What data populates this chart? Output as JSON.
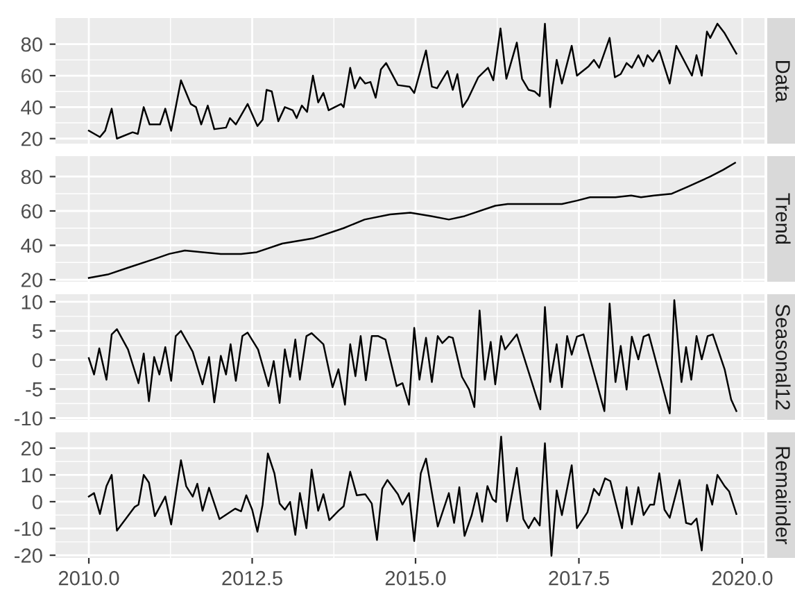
{
  "chart_data": [
    {
      "type": "line",
      "ylabel": "Data",
      "color": "#000000",
      "grid": true,
      "tick_labels": "y",
      "xlim": [
        2009.49,
        2020.34
      ],
      "ylim": [
        16.8,
        96.6
      ],
      "yticks": [
        20,
        40,
        60,
        80
      ],
      "x": [
        2010.0,
        2010.17,
        2010.25,
        2010.35,
        2010.43,
        2010.67,
        2010.75,
        2010.84,
        2010.93,
        2011.09,
        2011.17,
        2011.26,
        2011.41,
        2011.56,
        2011.64,
        2011.72,
        2011.82,
        2011.92,
        2012.1,
        2012.16,
        2012.25,
        2012.43,
        2012.58,
        2012.66,
        2012.72,
        2012.8,
        2012.9,
        2013.0,
        2013.12,
        2013.18,
        2013.26,
        2013.34,
        2013.43,
        2013.51,
        2013.59,
        2013.67,
        2013.86,
        2013.9,
        2014.0,
        2014.07,
        2014.15,
        2014.23,
        2014.31,
        2014.39,
        2014.47,
        2014.55,
        2014.73,
        2014.91,
        2014.98,
        2015.16,
        2015.25,
        2015.33,
        2015.49,
        2015.57,
        2015.64,
        2015.72,
        2015.8,
        2015.96,
        2016.11,
        2016.19,
        2016.3,
        2016.39,
        2016.55,
        2016.63,
        2016.73,
        2016.82,
        2016.9,
        2016.98,
        2017.06,
        2017.1,
        2017.16,
        2017.24,
        2017.39,
        2017.47,
        2017.65,
        2017.73,
        2017.81,
        2017.97,
        2018.05,
        2018.14,
        2018.23,
        2018.31,
        2018.41,
        2018.49,
        2018.55,
        2018.63,
        2018.73,
        2018.89,
        2018.99,
        2019.23,
        2019.3,
        2019.38,
        2019.46,
        2019.51,
        2019.62,
        2019.73,
        2019.91
      ],
      "values": [
        25,
        21,
        25,
        39,
        20,
        24,
        23,
        40,
        29,
        29,
        39,
        25,
        57,
        42,
        40,
        29,
        41,
        26,
        27,
        33,
        29,
        42,
        28,
        32,
        51,
        50,
        31,
        40,
        38,
        33,
        41,
        37,
        60,
        43,
        49,
        38,
        42,
        40,
        65,
        52,
        59,
        55,
        56,
        46,
        64,
        68,
        54,
        53,
        49,
        76,
        53,
        52,
        63,
        51,
        61,
        40,
        45,
        59,
        65,
        57,
        90,
        58,
        81,
        58,
        51,
        50,
        47,
        93,
        40,
        53,
        70,
        55,
        79,
        60,
        66,
        70,
        65,
        84,
        59,
        61,
        68,
        65,
        73,
        66,
        73,
        69,
        76,
        55,
        79,
        60,
        73,
        60,
        88,
        84,
        93,
        87,
        74
      ]
    },
    {
      "type": "line",
      "ylabel": "Trend",
      "color": "#000000",
      "grid": true,
      "tick_labels": "y",
      "xlim": [
        2009.49,
        2020.34
      ],
      "ylim": [
        18.8,
        91.9
      ],
      "yticks": [
        20,
        40,
        60,
        80
      ],
      "x": [
        2010.0,
        2010.29,
        2010.6,
        2011.0,
        2011.23,
        2011.47,
        2011.74,
        2012.02,
        2012.33,
        2012.57,
        2012.96,
        2013.43,
        2013.9,
        2014.22,
        2014.61,
        2014.92,
        2015.24,
        2015.51,
        2015.75,
        2016.22,
        2016.41,
        2017.24,
        2017.47,
        2017.67,
        2018.06,
        2018.3,
        2018.45,
        2018.65,
        2018.92,
        2019.16,
        2019.51,
        2019.71,
        2019.89
      ],
      "values": [
        21,
        23,
        27,
        32,
        35,
        37,
        36,
        35,
        35,
        36,
        41,
        44,
        50,
        55,
        58,
        59,
        57,
        55,
        57,
        63,
        64,
        64,
        66,
        68,
        68,
        69,
        68,
        69,
        70,
        74,
        80,
        84,
        88
      ]
    },
    {
      "type": "line",
      "ylabel": "Seasonal12",
      "color": "#000000",
      "grid": true,
      "tick_labels": "y",
      "xlim": [
        2009.49,
        2020.34
      ],
      "ylim": [
        -10.3,
        11.3
      ],
      "yticks": [
        {
          "value": -10,
          "label": "-10"
        },
        {
          "value": -5,
          "label": "-5"
        },
        0,
        5,
        10
      ],
      "x": [
        2010.0,
        2010.08,
        2010.16,
        2010.27,
        2010.35,
        2010.43,
        2010.6,
        2010.76,
        2010.84,
        2010.92,
        2011.0,
        2011.08,
        2011.17,
        2011.26,
        2011.33,
        2011.41,
        2011.59,
        2011.74,
        2011.84,
        2011.92,
        2012.02,
        2012.1,
        2012.17,
        2012.25,
        2012.35,
        2012.43,
        2012.59,
        2012.75,
        2012.83,
        2012.92,
        2013.0,
        2013.08,
        2013.16,
        2013.23,
        2013.33,
        2013.41,
        2013.59,
        2013.73,
        2013.82,
        2013.92,
        2014.0,
        2014.08,
        2014.16,
        2014.24,
        2014.33,
        2014.43,
        2014.54,
        2014.71,
        2014.8,
        2014.9,
        2014.98,
        2015.06,
        2015.16,
        2015.25,
        2015.34,
        2015.41,
        2015.51,
        2015.57,
        2015.71,
        2015.82,
        2015.9,
        2015.98,
        2016.06,
        2016.15,
        2016.22,
        2016.31,
        2016.37,
        2016.55,
        2016.91,
        2016.98,
        2017.06,
        2017.16,
        2017.24,
        2017.32,
        2017.39,
        2017.47,
        2017.57,
        2017.89,
        2017.97,
        2018.06,
        2018.14,
        2018.23,
        2018.31,
        2018.41,
        2018.49,
        2018.57,
        2018.89,
        2018.96,
        2019.07,
        2019.14,
        2019.22,
        2019.3,
        2019.38,
        2019.47,
        2019.55,
        2019.73,
        2019.83,
        2019.91
      ],
      "values": [
        0.3,
        -2.5,
        2,
        -3.4,
        4.4,
        5.3,
        1.8,
        -4,
        1.1,
        -7.1,
        0.5,
        -2.5,
        2.2,
        -3.6,
        4.1,
        5,
        1.4,
        -4.2,
        0.5,
        -7.3,
        0.7,
        -2.5,
        2.7,
        -3.6,
        4.1,
        4.7,
        1.8,
        -4.5,
        -0.2,
        -7.4,
        1.8,
        -2.9,
        3.5,
        -3.4,
        4.1,
        4.6,
        2.7,
        -4.7,
        -1.6,
        -7.7,
        2.7,
        -2.8,
        4.1,
        -3.5,
        4.1,
        4.1,
        3.5,
        -4.5,
        -4,
        -7.7,
        5.5,
        -3.4,
        3.8,
        -3.8,
        4.1,
        2.9,
        4,
        3.8,
        -2.9,
        -5.1,
        -8.1,
        8.5,
        -3.4,
        3.1,
        -4.2,
        4.1,
        1.8,
        4.4,
        -8.5,
        9.1,
        -3.8,
        2.7,
        -4.7,
        4.1,
        0.9,
        4,
        4.4,
        -8.8,
        9.7,
        -3.8,
        2.4,
        -5.1,
        4,
        0.1,
        4,
        4.4,
        -9.2,
        10.3,
        -3.8,
        2.2,
        -3.4,
        4.1,
        0.1,
        4.1,
        4.4,
        -1.6,
        -6.8,
        -8.8
      ]
    },
    {
      "type": "line",
      "ylabel": "Remainder",
      "color": "#000000",
      "grid": true,
      "xlim": [
        2009.49,
        2020.34
      ],
      "ylim": [
        -21,
        25.9
      ],
      "yticks": [
        {
          "value": -20,
          "label": "-20"
        },
        {
          "value": -10,
          "label": "-10"
        },
        0,
        10,
        20
      ],
      "xticks": [
        {
          "value": 2010,
          "label": "2010.0"
        },
        2012.5,
        {
          "value": 2015,
          "label": "2015.0"
        },
        2017.5,
        {
          "value": 2020,
          "label": "2020.0"
        }
      ],
      "x": [
        2010.0,
        2010.08,
        2010.17,
        2010.27,
        2010.35,
        2010.43,
        2010.7,
        2010.76,
        2010.84,
        2010.92,
        2011.01,
        2011.17,
        2011.26,
        2011.41,
        2011.49,
        2011.59,
        2011.66,
        2011.74,
        2011.84,
        2012.0,
        2012.24,
        2012.33,
        2012.41,
        2012.5,
        2012.58,
        2012.66,
        2012.74,
        2012.84,
        2012.92,
        2013.0,
        2013.08,
        2013.16,
        2013.23,
        2013.33,
        2013.41,
        2013.51,
        2013.59,
        2013.68,
        2013.82,
        2013.9,
        2014.0,
        2014.1,
        2014.23,
        2014.33,
        2014.41,
        2014.49,
        2014.57,
        2014.73,
        2014.8,
        2014.9,
        2014.98,
        2015.08,
        2015.16,
        2015.34,
        2015.51,
        2015.59,
        2015.67,
        2015.75,
        2015.86,
        2015.94,
        2016.02,
        2016.1,
        2016.18,
        2016.23,
        2016.31,
        2016.4,
        2016.55,
        2016.65,
        2016.73,
        2016.82,
        2016.9,
        2016.98,
        2017.08,
        2017.16,
        2017.24,
        2017.39,
        2017.47,
        2017.63,
        2017.73,
        2017.81,
        2017.9,
        2017.98,
        2018.16,
        2018.23,
        2018.31,
        2018.41,
        2018.49,
        2018.59,
        2018.65,
        2018.73,
        2018.81,
        2018.89,
        2019.04,
        2019.14,
        2019.22,
        2019.3,
        2019.38,
        2019.46,
        2019.54,
        2019.62,
        2019.73,
        2019.8,
        2019.91
      ],
      "values": [
        1.9,
        3.2,
        -4.6,
        5.8,
        10,
        -10.8,
        -2,
        -1.1,
        10,
        7.1,
        -5.4,
        1.9,
        -8.5,
        15.5,
        5.8,
        1.9,
        6.7,
        -3.4,
        5.2,
        -6.5,
        -2.6,
        -3.6,
        2.4,
        -3,
        -11.2,
        -1.1,
        18,
        10.6,
        -0.7,
        -3,
        -0.1,
        -12.4,
        3.2,
        -9.9,
        12,
        -3.4,
        2.8,
        -6.9,
        -3.4,
        -1.7,
        11.2,
        2.4,
        2.8,
        -0.7,
        -14.3,
        4.8,
        8.1,
        2.8,
        -1.1,
        3.2,
        -14.7,
        10.6,
        16.1,
        -9.3,
        3.2,
        -7.9,
        5.4,
        -12.8,
        -5,
        3.2,
        -7.5,
        5.8,
        0.9,
        -0.1,
        24.3,
        -7.3,
        12.6,
        -6.5,
        -9.9,
        -6,
        -8.9,
        21.8,
        -20.2,
        4.2,
        -5,
        13.6,
        -9.9,
        -4,
        4.8,
        2.4,
        8.7,
        7.7,
        -9.9,
        5.4,
        -8.5,
        5.4,
        -5,
        -1.1,
        -1.1,
        10.6,
        -3,
        -6,
        8.1,
        -7.9,
        -8.5,
        -6.3,
        -18.2,
        6.3,
        -1.1,
        10,
        5.8,
        3.8,
        -4.6
      ]
    }
  ]
}
